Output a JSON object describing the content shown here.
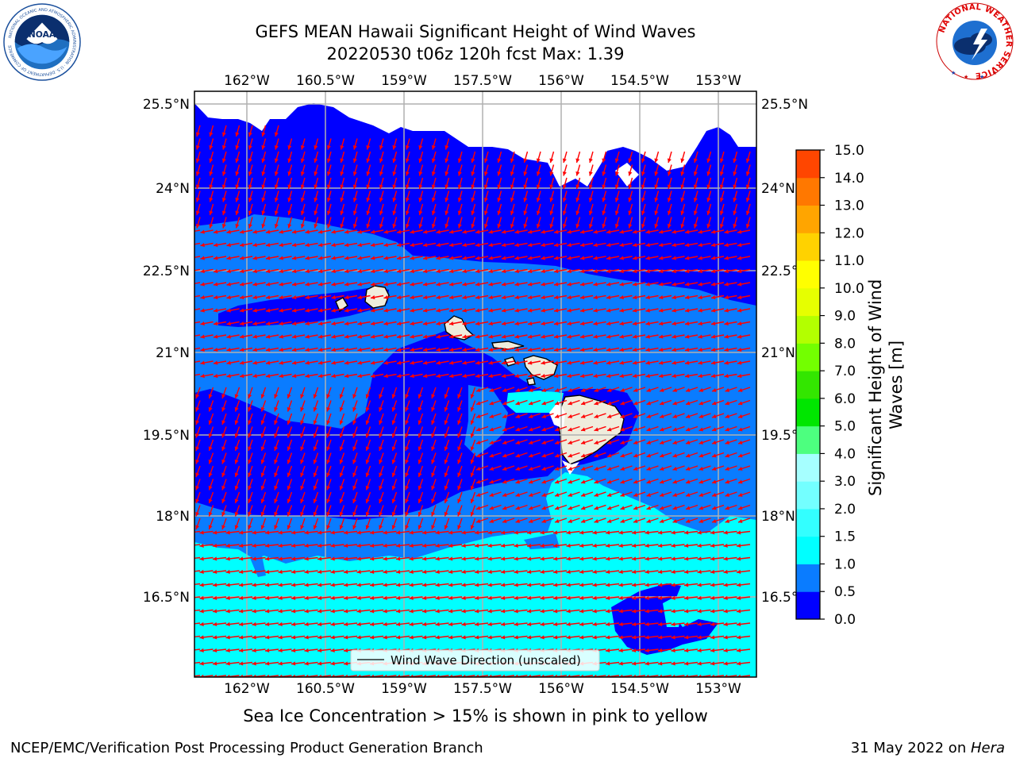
{
  "title": {
    "line1": "GEFS MEAN Hawaii Significant Height of Wind Waves",
    "line2": "20220530 t06z 120h fcst   Max: 1.39"
  },
  "lon_ticks": [
    "162°W",
    "160.5°W",
    "159°W",
    "157.5°W",
    "156°W",
    "154.5°W",
    "153°W"
  ],
  "lat_ticks": [
    "25.5°N",
    "24°N",
    "22.5°N",
    "21°N",
    "19.5°N",
    "18°N",
    "16.5°N"
  ],
  "legend": {
    "label": "Wind Wave Direction (unscaled)"
  },
  "colorbar": {
    "label": "Significant Height of Wind Waves [m]",
    "label_line1": "Significant Height of Wind",
    "label_line2": "Waves [m]",
    "ticks": [
      "0.0",
      "0.5",
      "1.0",
      "1.5",
      "2.0",
      "3.0",
      "4.0",
      "5.0",
      "6.0",
      "7.0",
      "8.0",
      "9.0",
      "10.0",
      "11.0",
      "12.0",
      "13.0",
      "14.0",
      "15.0"
    ],
    "colors": [
      "#0000ff",
      "#0a7cff",
      "#00ffff",
      "#33ffff",
      "#73ffff",
      "#a6ffff",
      "#4dff7f",
      "#00e600",
      "#33e600",
      "#73ff00",
      "#b3ff00",
      "#e6ff00",
      "#ffff00",
      "#ffd200",
      "#ffa500",
      "#ff7800",
      "#ff4600",
      "#ff0000"
    ]
  },
  "seaice_note": "Sea Ice Concentration > 15% is shown in pink to yellow",
  "footer": {
    "left": "NCEP/EMC/Verification Post Processing Product Generation Branch",
    "right_prefix": "31 May 2022 on ",
    "right_host": "Hera"
  },
  "logos": {
    "noaa": {
      "text": "NOAA",
      "ring": "NATIONAL OCEANIC AND ATMOSPHERIC ADMINISTRATION · U.S. DEPARTMENT OF COMMERCE"
    },
    "nws": {
      "ring": "NATIONAL WEATHER SERVICE"
    }
  },
  "map_colors": {
    "land": "#efecdc",
    "grid": "#b0b0b0",
    "arrow": "#ff0000"
  }
}
